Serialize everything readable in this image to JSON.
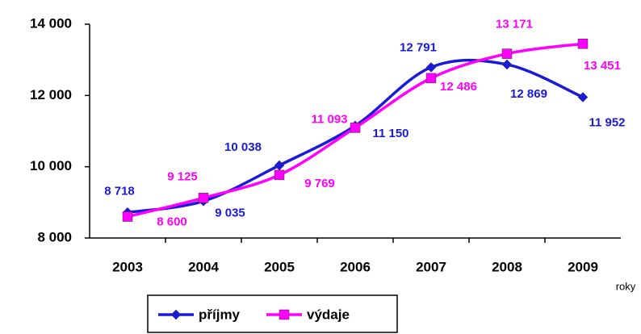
{
  "chart_data": {
    "type": "line",
    "x_label": "roky",
    "categories": [
      "2003",
      "2004",
      "2005",
      "2006",
      "2007",
      "2008",
      "2009"
    ],
    "series": [
      {
        "name": "příjmy",
        "color": "#1a1adb",
        "marker": "diamond",
        "values": [
          8718,
          9035,
          10038,
          11150,
          12791,
          12869,
          11952
        ],
        "value_labels": [
          "8 718",
          "9 035",
          "10 038",
          "11 150",
          "12 791",
          "12 869",
          "11 952"
        ]
      },
      {
        "name": "výdaje",
        "color": "#ff00ff",
        "marker": "square",
        "values": [
          8600,
          9125,
          9769,
          11093,
          12486,
          13171,
          13451
        ],
        "value_labels": [
          "8 600",
          "9 125",
          "9 769",
          "11 093",
          "12 486",
          "13 171",
          "13 451"
        ]
      }
    ],
    "ylim": [
      8000,
      14000
    ],
    "yticks": [
      {
        "value": 8000,
        "label": "8 000"
      },
      {
        "value": 10000,
        "label": "10 000"
      },
      {
        "value": 12000,
        "label": "12 000"
      },
      {
        "value": 14000,
        "label": "14 000"
      }
    ],
    "smooth": true,
    "legend": "bottom"
  }
}
